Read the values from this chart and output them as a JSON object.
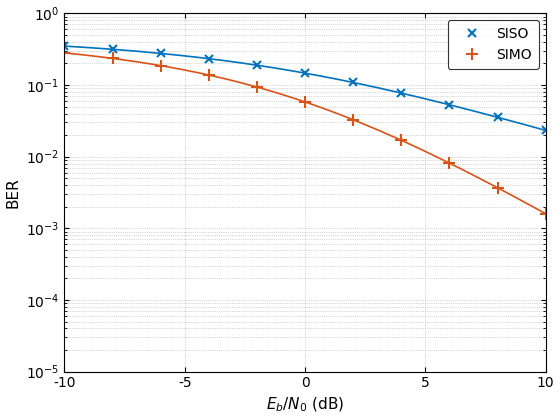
{
  "siso_color": "#0072BD",
  "simo_color": "#D95319",
  "xlabel": "$E_b/N_0$ (dB)",
  "ylabel": "BER",
  "xlim": [
    -10,
    10
  ],
  "ylim": [
    1e-05,
    1.0
  ],
  "legend_labels": [
    "SISO",
    "SIMO"
  ],
  "grid_color": "#b0b0b0",
  "marker_siso": "x",
  "marker_simo": "+",
  "marker_snr_db": [
    -10,
    -8,
    -6,
    -4,
    -2,
    0,
    2,
    4,
    6,
    8,
    10
  ]
}
